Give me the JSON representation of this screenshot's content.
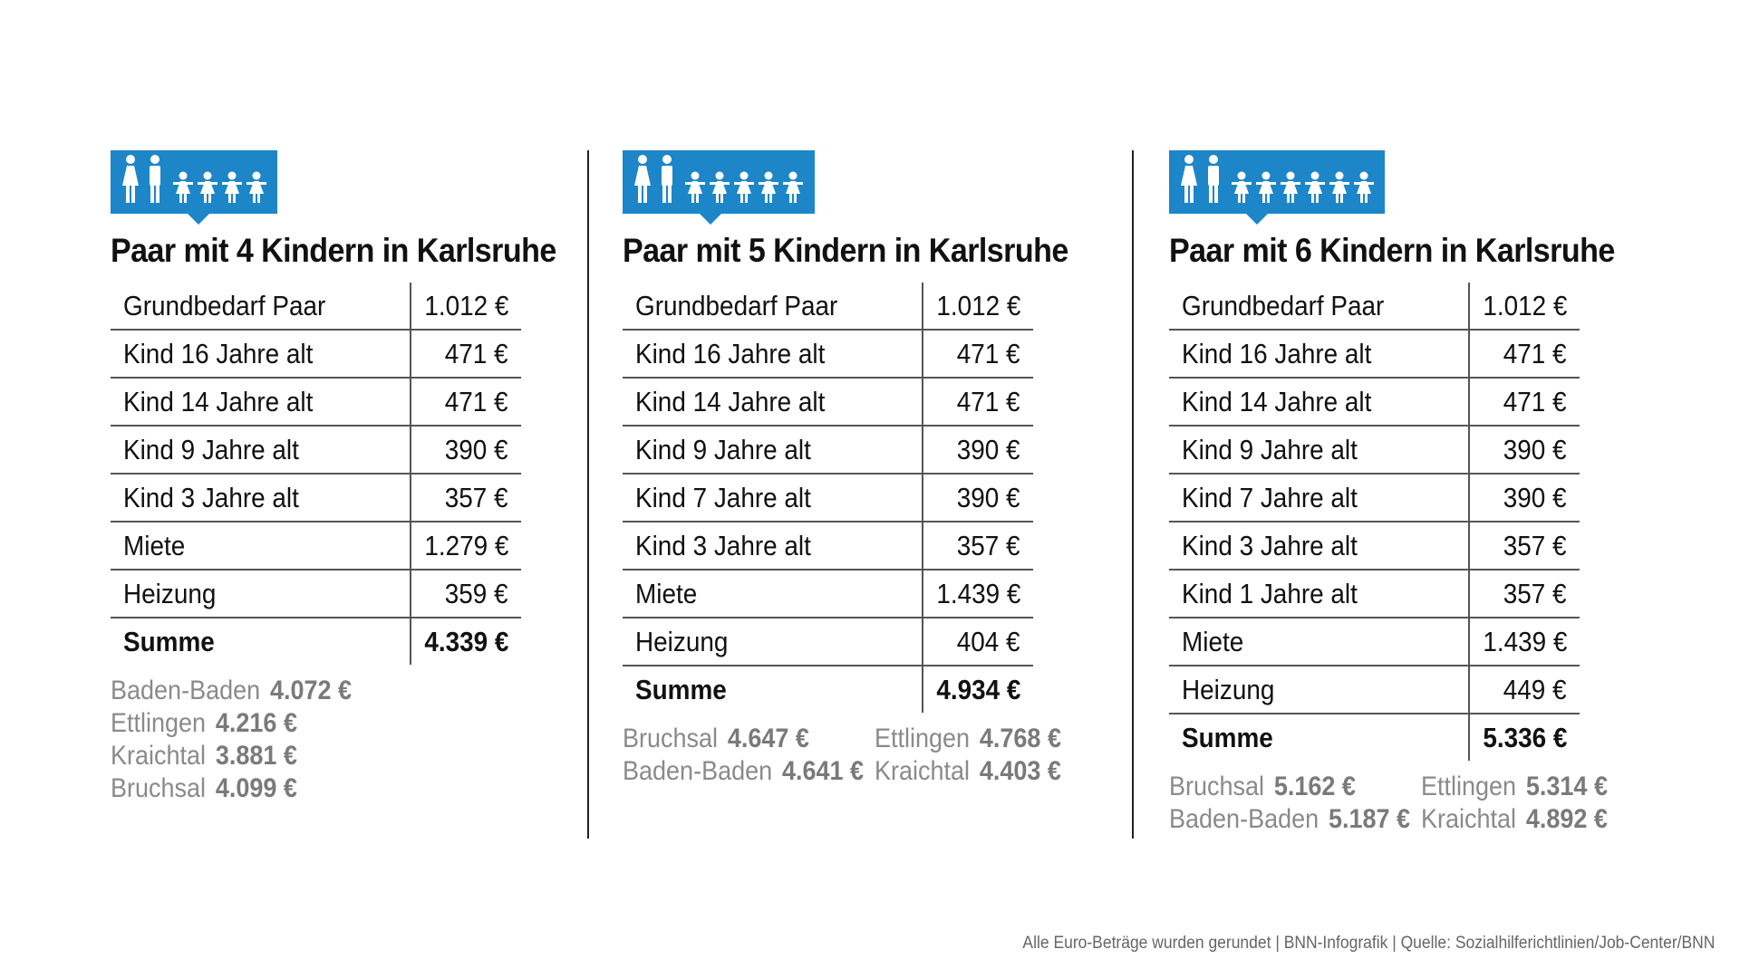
{
  "chart_data": [
    {
      "type": "table",
      "title": "Paar mit 4 Kindern in Karlsruhe",
      "adults": 2,
      "children": 4,
      "rows": [
        {
          "label": "Grundbedarf Paar",
          "value": "1.012 €"
        },
        {
          "label": "Kind 16 Jahre alt",
          "value": "471 €"
        },
        {
          "label": "Kind 14 Jahre alt",
          "value": "471 €"
        },
        {
          "label": "Kind 9 Jahre alt",
          "value": "390 €"
        },
        {
          "label": "Kind 3 Jahre alt",
          "value": "357 €"
        },
        {
          "label": "Miete",
          "value": "1.279 €"
        },
        {
          "label": "Heizung",
          "value": "359 €"
        }
      ],
      "total": {
        "label": "Summe",
        "value": "4.339 €"
      },
      "comparison": [
        {
          "city": "Baden-Baden",
          "value": "4.072 €"
        },
        {
          "city": "Ettlingen",
          "value": "4.216 €"
        },
        {
          "city": "Kraichtal",
          "value": "3.881 €"
        },
        {
          "city": "Bruchsal",
          "value": "4.099 €"
        }
      ]
    },
    {
      "type": "table",
      "title": "Paar mit 5 Kindern in Karlsruhe",
      "adults": 2,
      "children": 5,
      "rows": [
        {
          "label": "Grundbedarf Paar",
          "value": "1.012 €"
        },
        {
          "label": "Kind 16 Jahre alt",
          "value": "471 €"
        },
        {
          "label": "Kind 14 Jahre alt",
          "value": "471 €"
        },
        {
          "label": "Kind 9 Jahre alt",
          "value": "390 €"
        },
        {
          "label": "Kind 7 Jahre alt",
          "value": "390 €"
        },
        {
          "label": "Kind 3 Jahre alt",
          "value": "357 €"
        },
        {
          "label": "Miete",
          "value": "1.439 €"
        },
        {
          "label": "Heizung",
          "value": "404 €"
        }
      ],
      "total": {
        "label": "Summe",
        "value": "4.934 €"
      },
      "comparison": [
        {
          "city": "Bruchsal",
          "value": "4.647 €"
        },
        {
          "city": "Ettlingen",
          "value": "4.768 €"
        },
        {
          "city": "Baden-Baden",
          "value": "4.641 €"
        },
        {
          "city": "Kraichtal",
          "value": "4.403 €"
        }
      ]
    },
    {
      "type": "table",
      "title": "Paar mit 6 Kindern in Karlsruhe",
      "adults": 2,
      "children": 6,
      "rows": [
        {
          "label": "Grundbedarf Paar",
          "value": "1.012 €"
        },
        {
          "label": "Kind 16 Jahre alt",
          "value": "471 €"
        },
        {
          "label": "Kind 14 Jahre alt",
          "value": "471 €"
        },
        {
          "label": "Kind 9 Jahre alt",
          "value": "390 €"
        },
        {
          "label": "Kind 7 Jahre alt",
          "value": "390 €"
        },
        {
          "label": "Kind 3 Jahre alt",
          "value": "357 €"
        },
        {
          "label": "Kind 1 Jahre alt",
          "value": "357 €"
        },
        {
          "label": "Miete",
          "value": "1.439 €"
        },
        {
          "label": "Heizung",
          "value": "449 €"
        }
      ],
      "total": {
        "label": "Summe",
        "value": "5.336 €"
      },
      "comparison": [
        {
          "city": "Bruchsal",
          "value": "5.162 €"
        },
        {
          "city": "Ettlingen",
          "value": "5.314 €"
        },
        {
          "city": "Baden-Baden",
          "value": "5.187 €"
        },
        {
          "city": "Kraichtal",
          "value": "4.892 €"
        }
      ]
    }
  ],
  "colors": {
    "badge": "#1d86c8",
    "city_text": "#8a8a8a",
    "rule": "#555555"
  },
  "icon": "family-icon",
  "footer": "Alle Euro-Beträge wurden gerundet | BNN-Infografik | Quelle: Sozialhilferichtlinien/Job-Center/BNN"
}
